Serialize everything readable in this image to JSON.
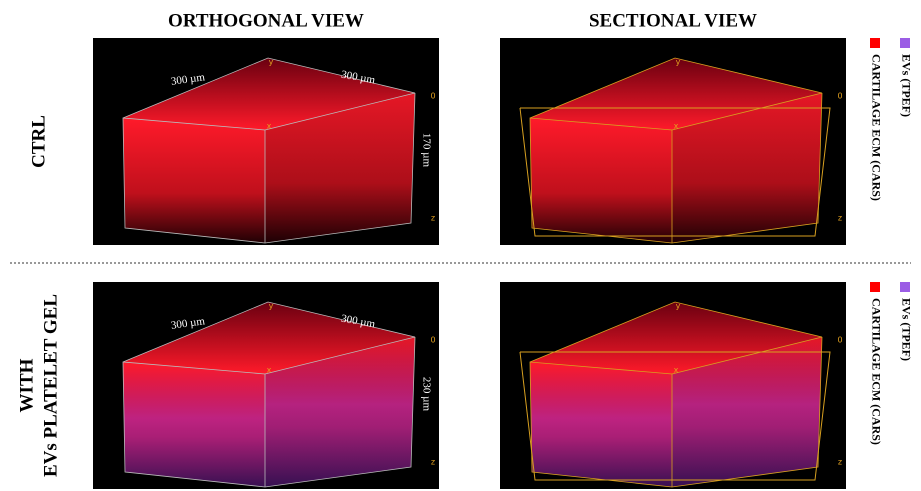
{
  "column_titles": [
    "ORTHOGONAL VIEW",
    "SECTIONAL VIEW"
  ],
  "rows": [
    {
      "label": [
        "CTRL"
      ],
      "legend": [
        "EVs (TPEF)",
        "CARTILAGE ECM (CARS)"
      ],
      "panels": [
        {
          "width_x": "300 µm",
          "width_y": "300 µm",
          "depth": "170 µm",
          "axes": [
            "y",
            "x",
            "0",
            "z"
          ]
        },
        {
          "axes": [
            "y",
            "x",
            "0",
            "z"
          ]
        }
      ]
    },
    {
      "label": [
        "WITH",
        "EVs PLATELET GEL"
      ],
      "legend": [
        "EVs (TPEF)",
        "CARTILAGE ECM (CARS)"
      ],
      "panels": [
        {
          "width_x": "300 µm",
          "width_y": "300 µm",
          "depth": "230 µm",
          "axes": [
            "y",
            "x",
            "0",
            "z"
          ]
        },
        {
          "axes": [
            "y",
            "x",
            "0",
            "z"
          ]
        }
      ]
    }
  ]
}
